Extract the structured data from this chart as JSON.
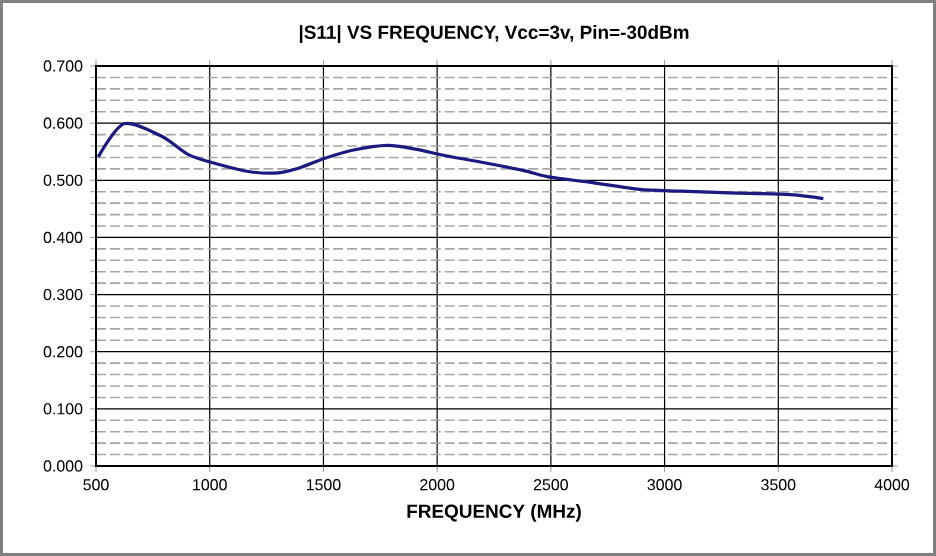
{
  "chart_data": {
    "type": "line",
    "title": "|S11| VS FREQUENCY, Vcc=3v, Pin=-30dBm",
    "xlabel": "FREQUENCY (MHz)",
    "x": [
      510,
      623,
      789,
      906,
      1029,
      1177,
      1300,
      1390,
      1510,
      1632,
      1781,
      1898,
      2051,
      2231,
      2382,
      2503,
      2683,
      2890,
      3071,
      3283,
      3553,
      3698
    ],
    "series": [
      {
        "color": "#1a1a80",
        "values": [
          0.541,
          0.599,
          0.577,
          0.545,
          0.529,
          0.515,
          0.513,
          0.521,
          0.539,
          0.553,
          0.561,
          0.555,
          0.542,
          0.529,
          0.517,
          0.505,
          0.496,
          0.484,
          0.481,
          0.478,
          0.475,
          0.468
        ]
      }
    ],
    "xlim": [
      500,
      4000
    ],
    "xticks": [
      500,
      1000,
      1500,
      2000,
      2500,
      3000,
      3500,
      4000
    ],
    "ylim": [
      0,
      0.7
    ],
    "yticks": [
      {
        "value": 0,
        "label": "0.000"
      },
      {
        "value": 0.1,
        "label": "0.100"
      },
      {
        "value": 0.2,
        "label": "0.200"
      },
      {
        "value": 0.3,
        "label": "0.300"
      },
      {
        "value": 0.4,
        "label": "0.400"
      },
      {
        "value": 0.5,
        "label": "0.500"
      },
      {
        "value": 0.6,
        "label": "0.600"
      },
      {
        "value": 0.7,
        "label": "0.700"
      }
    ],
    "grid": true,
    "marker": "none",
    "line_style": "solid"
  }
}
